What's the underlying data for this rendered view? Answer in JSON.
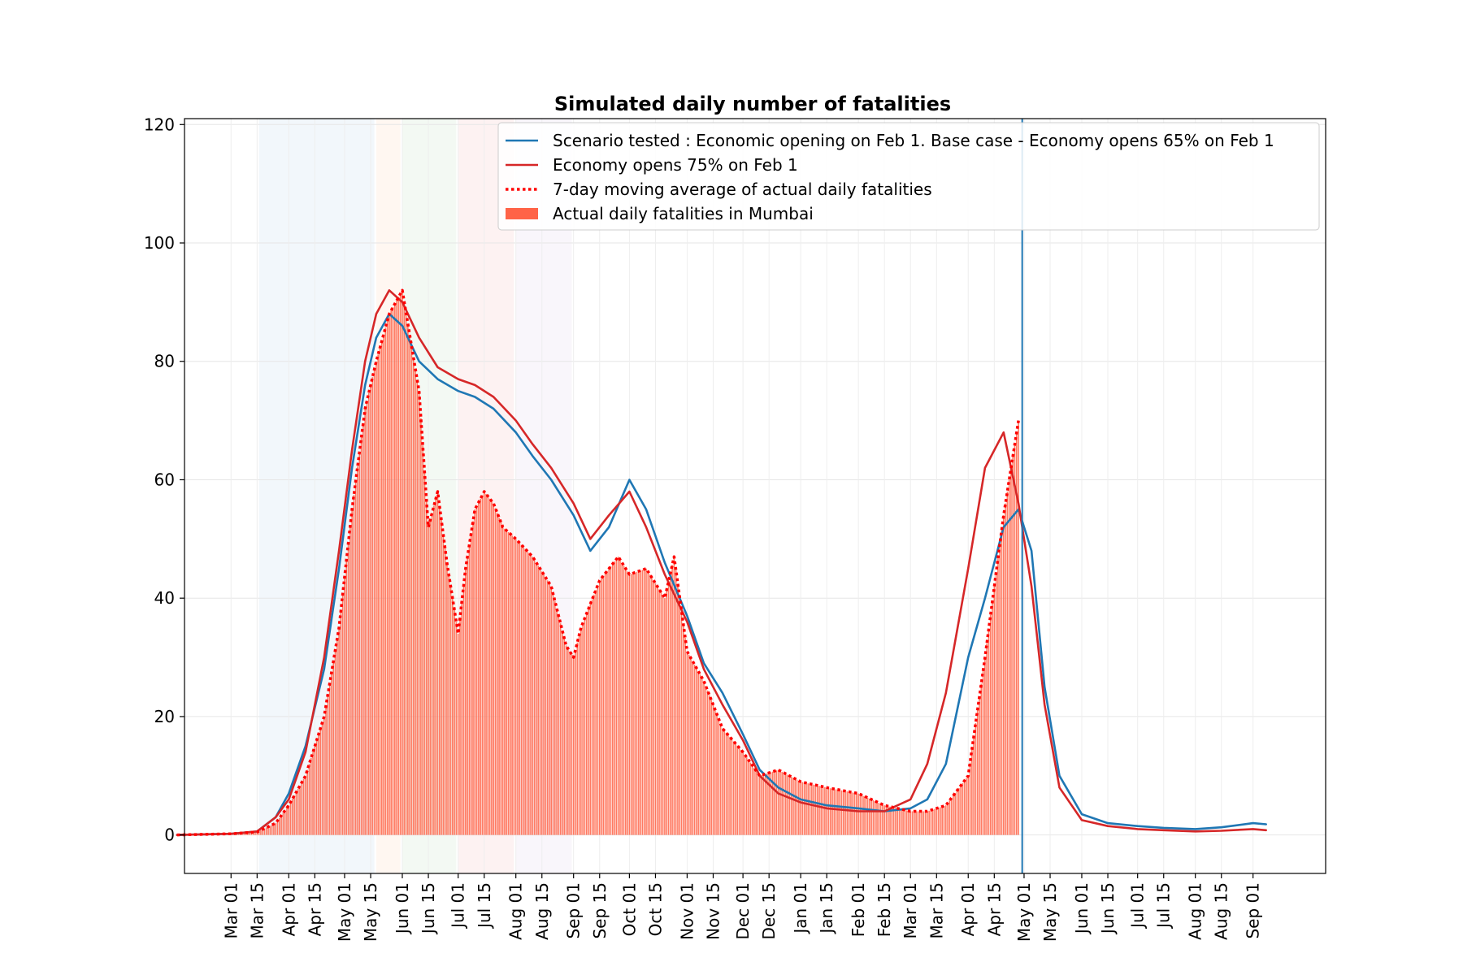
{
  "chart_data": {
    "type": "line",
    "title": "Simulated daily number of fatalities",
    "xlabel": "",
    "ylabel": "",
    "ylim": [
      -6.5,
      121
    ],
    "yticks": [
      0,
      20,
      40,
      60,
      80,
      100,
      120
    ],
    "x_range": [
      "2020-02-05",
      "2021-10-10"
    ],
    "x_ticks": [
      "Mar 01",
      "Mar 15",
      "Apr 01",
      "Apr 15",
      "May 01",
      "May 15",
      "Jun 01",
      "Jun 15",
      "Jul 01",
      "Jul 15",
      "Aug 01",
      "Aug 15",
      "Sep 01",
      "Sep 15",
      "Oct 01",
      "Oct 15",
      "Nov 01",
      "Nov 15",
      "Dec 01",
      "Dec 15",
      "Jan 01",
      "Jan 15",
      "Feb 01",
      "Feb 15",
      "Mar 01",
      "Mar 15",
      "Apr 01",
      "Apr 15",
      "May 01",
      "May 15",
      "Jun 01",
      "Jun 15",
      "Jul 01",
      "Jul 15",
      "Aug 01",
      "Aug 15",
      "Sep 01"
    ],
    "x_tick_dates": [
      "2020-03-01",
      "2020-03-15",
      "2020-04-01",
      "2020-04-15",
      "2020-05-01",
      "2020-05-15",
      "2020-06-01",
      "2020-06-15",
      "2020-07-01",
      "2020-07-15",
      "2020-08-01",
      "2020-08-15",
      "2020-09-01",
      "2020-09-15",
      "2020-10-01",
      "2020-10-15",
      "2020-11-01",
      "2020-11-15",
      "2020-12-01",
      "2020-12-15",
      "2021-01-01",
      "2021-01-15",
      "2021-02-01",
      "2021-02-15",
      "2021-03-01",
      "2021-03-15",
      "2021-04-01",
      "2021-04-15",
      "2021-05-01",
      "2021-05-15",
      "2021-06-01",
      "2021-06-15",
      "2021-07-01",
      "2021-07-15",
      "2021-08-01",
      "2021-08-15",
      "2021-09-01"
    ],
    "grid": true,
    "legend_position": "top-right",
    "vertical_line": "2021-04-30",
    "shaded_periods": [
      {
        "start": "2020-03-16",
        "end": "2020-05-17",
        "color": "#1f77b4"
      },
      {
        "start": "2020-05-18",
        "end": "2020-05-31",
        "color": "#ff7f0e"
      },
      {
        "start": "2020-06-01",
        "end": "2020-06-30",
        "color": "#2ca02c"
      },
      {
        "start": "2020-07-01",
        "end": "2020-07-31",
        "color": "#d62728"
      },
      {
        "start": "2020-08-01",
        "end": "2020-08-31",
        "color": "#9467bd"
      }
    ],
    "series": [
      {
        "name": "Scenario tested : Economic opening on Feb 1. Base case - Economy opens 65% on Feb 1",
        "style": "line",
        "color": "#1f77b4",
        "x": [
          "2020-02-01",
          "2020-03-01",
          "2020-03-15",
          "2020-03-25",
          "2020-04-01",
          "2020-04-10",
          "2020-04-20",
          "2020-04-28",
          "2020-05-05",
          "2020-05-12",
          "2020-05-18",
          "2020-05-25",
          "2020-06-01",
          "2020-06-10",
          "2020-06-20",
          "2020-07-01",
          "2020-07-10",
          "2020-07-20",
          "2020-08-01",
          "2020-08-10",
          "2020-08-20",
          "2020-09-01",
          "2020-09-10",
          "2020-09-20",
          "2020-10-01",
          "2020-10-10",
          "2020-10-20",
          "2020-11-01",
          "2020-11-10",
          "2020-11-20",
          "2020-12-01",
          "2020-12-10",
          "2020-12-20",
          "2021-01-01",
          "2021-01-15",
          "2021-02-01",
          "2021-02-15",
          "2021-03-01",
          "2021-03-10",
          "2021-03-20",
          "2021-04-01",
          "2021-04-10",
          "2021-04-20",
          "2021-04-28",
          "2021-05-05",
          "2021-05-12",
          "2021-05-20",
          "2021-06-01",
          "2021-06-15",
          "2021-07-01",
          "2021-07-15",
          "2021-08-01",
          "2021-08-15",
          "2021-09-01",
          "2021-09-08"
        ],
        "values": [
          0,
          0.2,
          0.6,
          3,
          7,
          15,
          28,
          45,
          62,
          76,
          84,
          88,
          86,
          80,
          77,
          75,
          74,
          72,
          68,
          64,
          60,
          54,
          48,
          52,
          60,
          55,
          46,
          37,
          29,
          24,
          17,
          11,
          8,
          6,
          5,
          4.5,
          4,
          4.5,
          6,
          12,
          30,
          40,
          52,
          55,
          48,
          25,
          10,
          3.5,
          2,
          1.5,
          1.2,
          1,
          1.3,
          2,
          1.8
        ]
      },
      {
        "name": "Economy opens 75% on Feb 1",
        "style": "line",
        "color": "#d62728",
        "x": [
          "2020-02-01",
          "2020-03-01",
          "2020-03-15",
          "2020-03-25",
          "2020-04-01",
          "2020-04-10",
          "2020-04-20",
          "2020-04-28",
          "2020-05-05",
          "2020-05-12",
          "2020-05-18",
          "2020-05-25",
          "2020-06-01",
          "2020-06-10",
          "2020-06-20",
          "2020-07-01",
          "2020-07-10",
          "2020-07-20",
          "2020-08-01",
          "2020-08-10",
          "2020-08-20",
          "2020-09-01",
          "2020-09-10",
          "2020-09-20",
          "2020-10-01",
          "2020-10-10",
          "2020-10-20",
          "2020-11-01",
          "2020-11-10",
          "2020-11-20",
          "2020-12-01",
          "2020-12-10",
          "2020-12-20",
          "2021-01-01",
          "2021-01-15",
          "2021-02-01",
          "2021-02-15",
          "2021-03-01",
          "2021-03-10",
          "2021-03-20",
          "2021-04-01",
          "2021-04-10",
          "2021-04-20",
          "2021-04-28",
          "2021-05-05",
          "2021-05-12",
          "2021-05-20",
          "2021-06-01",
          "2021-06-15",
          "2021-07-01",
          "2021-07-15",
          "2021-08-01",
          "2021-08-15",
          "2021-09-01",
          "2021-09-08"
        ],
        "values": [
          0,
          0.2,
          0.6,
          3,
          6,
          14,
          30,
          48,
          65,
          80,
          88,
          92,
          90,
          84,
          79,
          77,
          76,
          74,
          70,
          66,
          62,
          56,
          50,
          54,
          58,
          52,
          44,
          36,
          28,
          22,
          16,
          10,
          7,
          5.5,
          4.5,
          4,
          4,
          6,
          12,
          24,
          45,
          62,
          68,
          56,
          42,
          22,
          8,
          2.5,
          1.5,
          1,
          0.8,
          0.6,
          0.7,
          1,
          0.8
        ]
      },
      {
        "name": "7-day moving average of actual daily fatalities",
        "style": "dotted",
        "color": "#ff0000",
        "x": [
          "2020-02-01",
          "2020-03-01",
          "2020-03-15",
          "2020-03-25",
          "2020-04-01",
          "2020-04-10",
          "2020-04-20",
          "2020-04-28",
          "2020-05-05",
          "2020-05-12",
          "2020-05-18",
          "2020-05-25",
          "2020-06-01",
          "2020-06-10",
          "2020-06-15",
          "2020-06-20",
          "2020-06-25",
          "2020-07-01",
          "2020-07-05",
          "2020-07-10",
          "2020-07-15",
          "2020-07-20",
          "2020-07-25",
          "2020-08-01",
          "2020-08-10",
          "2020-08-20",
          "2020-08-28",
          "2020-09-01",
          "2020-09-05",
          "2020-09-15",
          "2020-09-25",
          "2020-10-01",
          "2020-10-10",
          "2020-10-20",
          "2020-10-25",
          "2020-11-01",
          "2020-11-10",
          "2020-11-20",
          "2020-12-01",
          "2020-12-10",
          "2020-12-20",
          "2021-01-01",
          "2021-01-15",
          "2021-02-01",
          "2021-02-15",
          "2021-03-01",
          "2021-03-10",
          "2021-03-20",
          "2021-04-01",
          "2021-04-10",
          "2021-04-20",
          "2021-04-28"
        ],
        "values": [
          0,
          0.2,
          0.5,
          2,
          5,
          10,
          20,
          35,
          55,
          72,
          80,
          88,
          92,
          75,
          52,
          58,
          46,
          34,
          45,
          55,
          58,
          56,
          52,
          50,
          47,
          42,
          32,
          30,
          35,
          43,
          47,
          44,
          45,
          40,
          47,
          31,
          26,
          18,
          14,
          10,
          11,
          9,
          8,
          7,
          5,
          4,
          4,
          5,
          10,
          30,
          54,
          70
        ]
      },
      {
        "name": "Actual daily fatalities in Mumbai",
        "style": "bar",
        "color": "#ff6347",
        "x": [
          "2020-03-01",
          "2020-03-15",
          "2020-03-25",
          "2020-04-01",
          "2020-04-10",
          "2020-04-20",
          "2020-04-28",
          "2020-05-05",
          "2020-05-12",
          "2020-05-18",
          "2020-05-25",
          "2020-06-01",
          "2020-06-10",
          "2020-06-15",
          "2020-06-20",
          "2020-06-25",
          "2020-07-01",
          "2020-07-05",
          "2020-07-10",
          "2020-07-15",
          "2020-07-20",
          "2020-07-25",
          "2020-08-01",
          "2020-08-10",
          "2020-08-20",
          "2020-08-28",
          "2020-09-01",
          "2020-09-05",
          "2020-09-15",
          "2020-09-25",
          "2020-10-01",
          "2020-10-10",
          "2020-10-20",
          "2020-10-25",
          "2020-11-01",
          "2020-11-10",
          "2020-11-20",
          "2020-12-01",
          "2020-12-10",
          "2020-12-20",
          "2021-01-01",
          "2021-01-15",
          "2021-02-01",
          "2021-02-15",
          "2021-03-01",
          "2021-03-10",
          "2021-03-20",
          "2021-04-01",
          "2021-04-10",
          "2021-04-20",
          "2021-04-28"
        ],
        "values": [
          0.2,
          0.5,
          2,
          5,
          10,
          20,
          35,
          55,
          72,
          80,
          88,
          92,
          75,
          52,
          58,
          46,
          34,
          45,
          55,
          58,
          56,
          52,
          50,
          47,
          42,
          32,
          30,
          35,
          43,
          47,
          44,
          45,
          40,
          47,
          31,
          26,
          18,
          14,
          10,
          11,
          9,
          8,
          7,
          5,
          4,
          4,
          5,
          10,
          30,
          54,
          70
        ]
      }
    ]
  }
}
